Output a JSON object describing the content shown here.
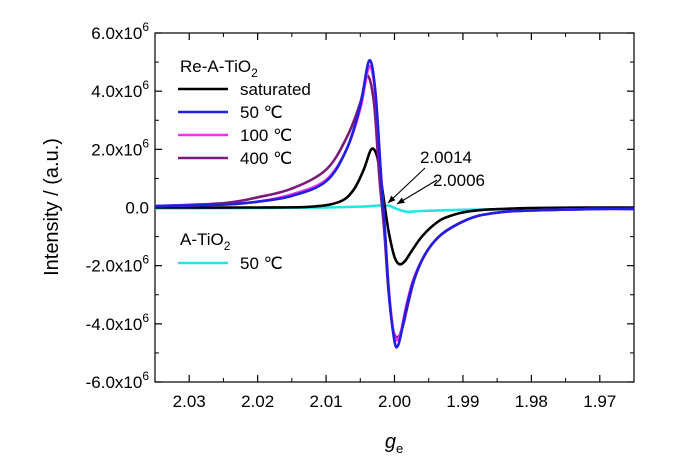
{
  "chart_data": {
    "type": "line",
    "xlabel_main": "g",
    "xlabel_sub": "e",
    "ylabel": "Intensity / (a.u.)",
    "xlim": [
      2.035,
      1.965
    ],
    "x_reversed": true,
    "ylim": [
      -6000000,
      6000000
    ],
    "x_ticks": [
      2.03,
      2.02,
      2.01,
      2.0,
      1.99,
      1.98,
      1.97
    ],
    "x_tick_labels": [
      "2.03",
      "2.02",
      "2.01",
      "2.00",
      "1.99",
      "1.98",
      "1.97"
    ],
    "y_ticks": [
      6000000,
      4000000,
      2000000,
      0,
      -2000000,
      -4000000,
      -6000000
    ],
    "y_tick_labels": [
      {
        "mantissa": "6.0x10",
        "exp": "6"
      },
      {
        "mantissa": "4.0x10",
        "exp": "6"
      },
      {
        "mantissa": "2.0x10",
        "exp": "6"
      },
      {
        "mantissa": "0.0",
        "exp": ""
      },
      {
        "mantissa": "-2.0x10",
        "exp": "6"
      },
      {
        "mantissa": "-4.0x10",
        "exp": "6"
      },
      {
        "mantissa": "-6.0x10",
        "exp": "6"
      }
    ],
    "grid": false,
    "legend_groups": [
      {
        "title_main": "Re-A-TiO",
        "title_sub": "2",
        "placement": "top-left",
        "entries": [
          "saturated",
          "50 ℃",
          "100 ℃",
          "400 ℃"
        ]
      },
      {
        "title_main": "A-TiO",
        "title_sub": "2",
        "placement": "middle-left",
        "entries": [
          "50 ℃"
        ]
      }
    ],
    "series": [
      {
        "name": "saturated",
        "group": 0,
        "color": "#000000",
        "x": [
          2.035,
          2.02,
          2.012,
          2.008,
          2.006,
          2.0045,
          2.0034,
          2.0026,
          2.002,
          2.0014,
          2.0008,
          2.0,
          1.9993,
          1.9985,
          1.9975,
          1.996,
          1.994,
          1.992,
          1.988,
          1.98,
          1.97,
          1.965
        ],
        "y": [
          0,
          0,
          30000,
          200000,
          600000,
          1300000,
          2000000,
          1800000,
          1000000,
          0,
          -900000,
          -1700000,
          -1950000,
          -1850000,
          -1500000,
          -1000000,
          -550000,
          -300000,
          -100000,
          -20000,
          0,
          0
        ]
      },
      {
        "name": "50 ℃",
        "group": 0,
        "color": "#1f1fe0",
        "x": [
          2.035,
          2.025,
          2.02,
          2.015,
          2.01,
          2.007,
          2.005,
          2.0037,
          2.0028,
          2.002,
          2.0014,
          2.0008,
          2.0,
          1.9995,
          1.999,
          1.9983,
          1.9972,
          1.9955,
          1.9935,
          1.991,
          1.988,
          1.984,
          1.98,
          1.97,
          1.965
        ],
        "y": [
          50000,
          100000,
          200000,
          400000,
          900000,
          2000000,
          3500000,
          5050000,
          4000000,
          1200000,
          -800000,
          -3000000,
          -4600000,
          -4750000,
          -4300000,
          -3500000,
          -2500000,
          -1600000,
          -1000000,
          -600000,
          -300000,
          -150000,
          -100000,
          -50000,
          -50000
        ]
      },
      {
        "name": "100 ℃",
        "group": 0,
        "color": "#ff2bff",
        "x": [
          2.035,
          2.025,
          2.02,
          2.015,
          2.01,
          2.007,
          2.005,
          2.0037,
          2.0028,
          2.002,
          2.0014,
          2.0008,
          2.0001,
          1.9996,
          1.999,
          1.9983,
          1.9972,
          1.9955,
          1.9935,
          1.991,
          1.988,
          1.984,
          1.98,
          1.97,
          1.965
        ],
        "y": [
          50000,
          100000,
          200000,
          450000,
          950000,
          2000000,
          3400000,
          4850000,
          3900000,
          1200000,
          -800000,
          -2900000,
          -4350000,
          -4550000,
          -4200000,
          -3400000,
          -2450000,
          -1600000,
          -1000000,
          -600000,
          -300000,
          -150000,
          -100000,
          -50000,
          -50000
        ]
      },
      {
        "name": "400 ℃",
        "group": 0,
        "color": "#7a1a7a",
        "x": [
          2.035,
          2.025,
          2.02,
          2.015,
          2.01,
          2.007,
          2.005,
          2.004,
          2.003,
          2.0022,
          2.0015,
          2.0009,
          2.0002,
          1.9995,
          1.9988,
          1.998,
          1.997,
          1.9955,
          1.9935,
          1.991,
          1.988,
          1.984,
          1.98,
          1.97,
          1.965
        ],
        "y": [
          50000,
          150000,
          350000,
          650000,
          1300000,
          2400000,
          3600000,
          4550000,
          3600000,
          1000000,
          -800000,
          -2800000,
          -4200000,
          -4450000,
          -4100000,
          -3300000,
          -2400000,
          -1600000,
          -1000000,
          -600000,
          -300000,
          -150000,
          -100000,
          -50000,
          -50000
        ]
      },
      {
        "name": "50 ℃",
        "group": 1,
        "color": "#22e5e5",
        "x": [
          2.035,
          2.02,
          2.01,
          2.005,
          2.002,
          2.0007,
          2.0,
          1.999,
          1.998,
          1.996,
          1.99,
          1.98,
          1.97,
          1.965
        ],
        "y": [
          -30000,
          -20000,
          0,
          30000,
          70000,
          60000,
          -20000,
          -100000,
          -150000,
          -120000,
          -80000,
          -50000,
          -30000,
          -30000
        ]
      }
    ],
    "annotations": [
      {
        "text": "2.0014",
        "points_to_x": 2.0014,
        "points_to_y": 0
      },
      {
        "text": "2.0006",
        "points_to_x": 2.0006,
        "points_to_y": 0
      }
    ]
  }
}
